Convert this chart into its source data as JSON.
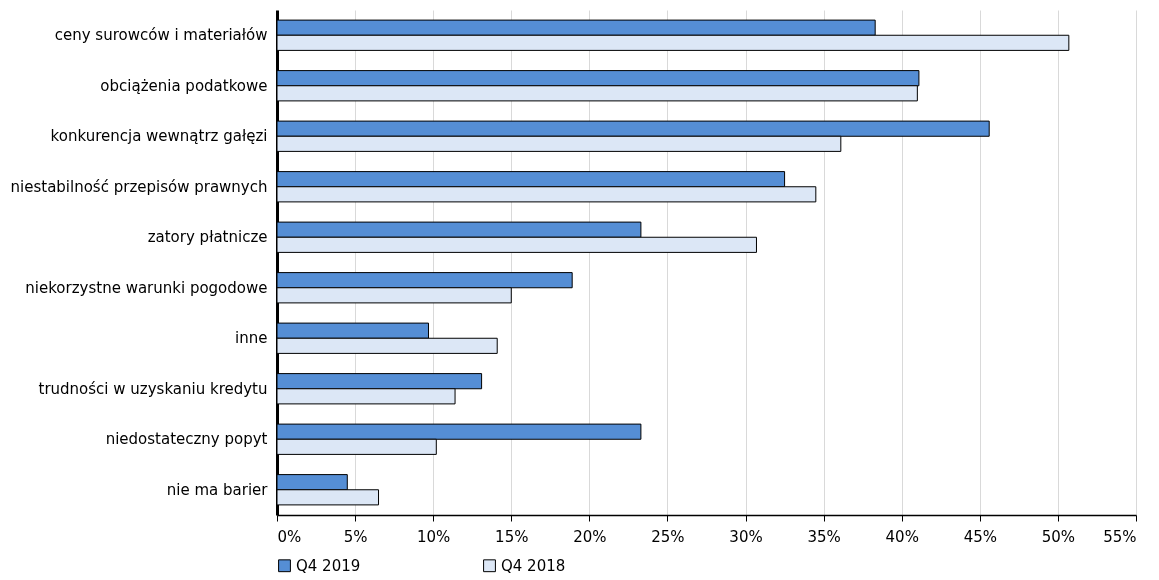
{
  "chart_data": {
    "type": "bar",
    "orientation": "horizontal",
    "categories": [
      "ceny surowców i materiałów",
      "obciążenia podatkowe",
      "konkurencja wewnątrz gałęzi",
      "niestabilność przepisów prawnych",
      "zatory płatnicze",
      "niekorzystne warunki pogodowe",
      "inne",
      "trudności w uzyskaniu kredytu",
      "niedostateczny popyt",
      "nie ma barier"
    ],
    "series": [
      {
        "name": "Q4 2019",
        "color": "#558ed5",
        "values": [
          38.3,
          41.1,
          45.6,
          32.5,
          23.3,
          18.9,
          9.7,
          13.1,
          23.3,
          4.5
        ]
      },
      {
        "name": "Q4 2018",
        "color": "#dce7f6",
        "values": [
          50.7,
          41.0,
          36.1,
          34.5,
          30.7,
          15.0,
          14.1,
          11.4,
          10.2,
          6.5
        ]
      }
    ],
    "xlim": [
      0,
      55
    ],
    "xticks": [
      {
        "value": 0,
        "label": "0%"
      },
      {
        "value": 5,
        "label": "5%"
      },
      {
        "value": 10,
        "label": "10%"
      },
      {
        "value": 15,
        "label": "15%"
      },
      {
        "value": 20,
        "label": "20%"
      },
      {
        "value": 25,
        "label": "25%"
      },
      {
        "value": 30,
        "label": "30%"
      },
      {
        "value": 35,
        "label": "35%"
      },
      {
        "value": 40,
        "label": "40%"
      },
      {
        "value": 45,
        "label": "45%"
      },
      {
        "value": 50,
        "label": "50%"
      },
      {
        "value": 55,
        "label": "55%"
      }
    ],
    "grid": "x",
    "legend": "bottom"
  }
}
